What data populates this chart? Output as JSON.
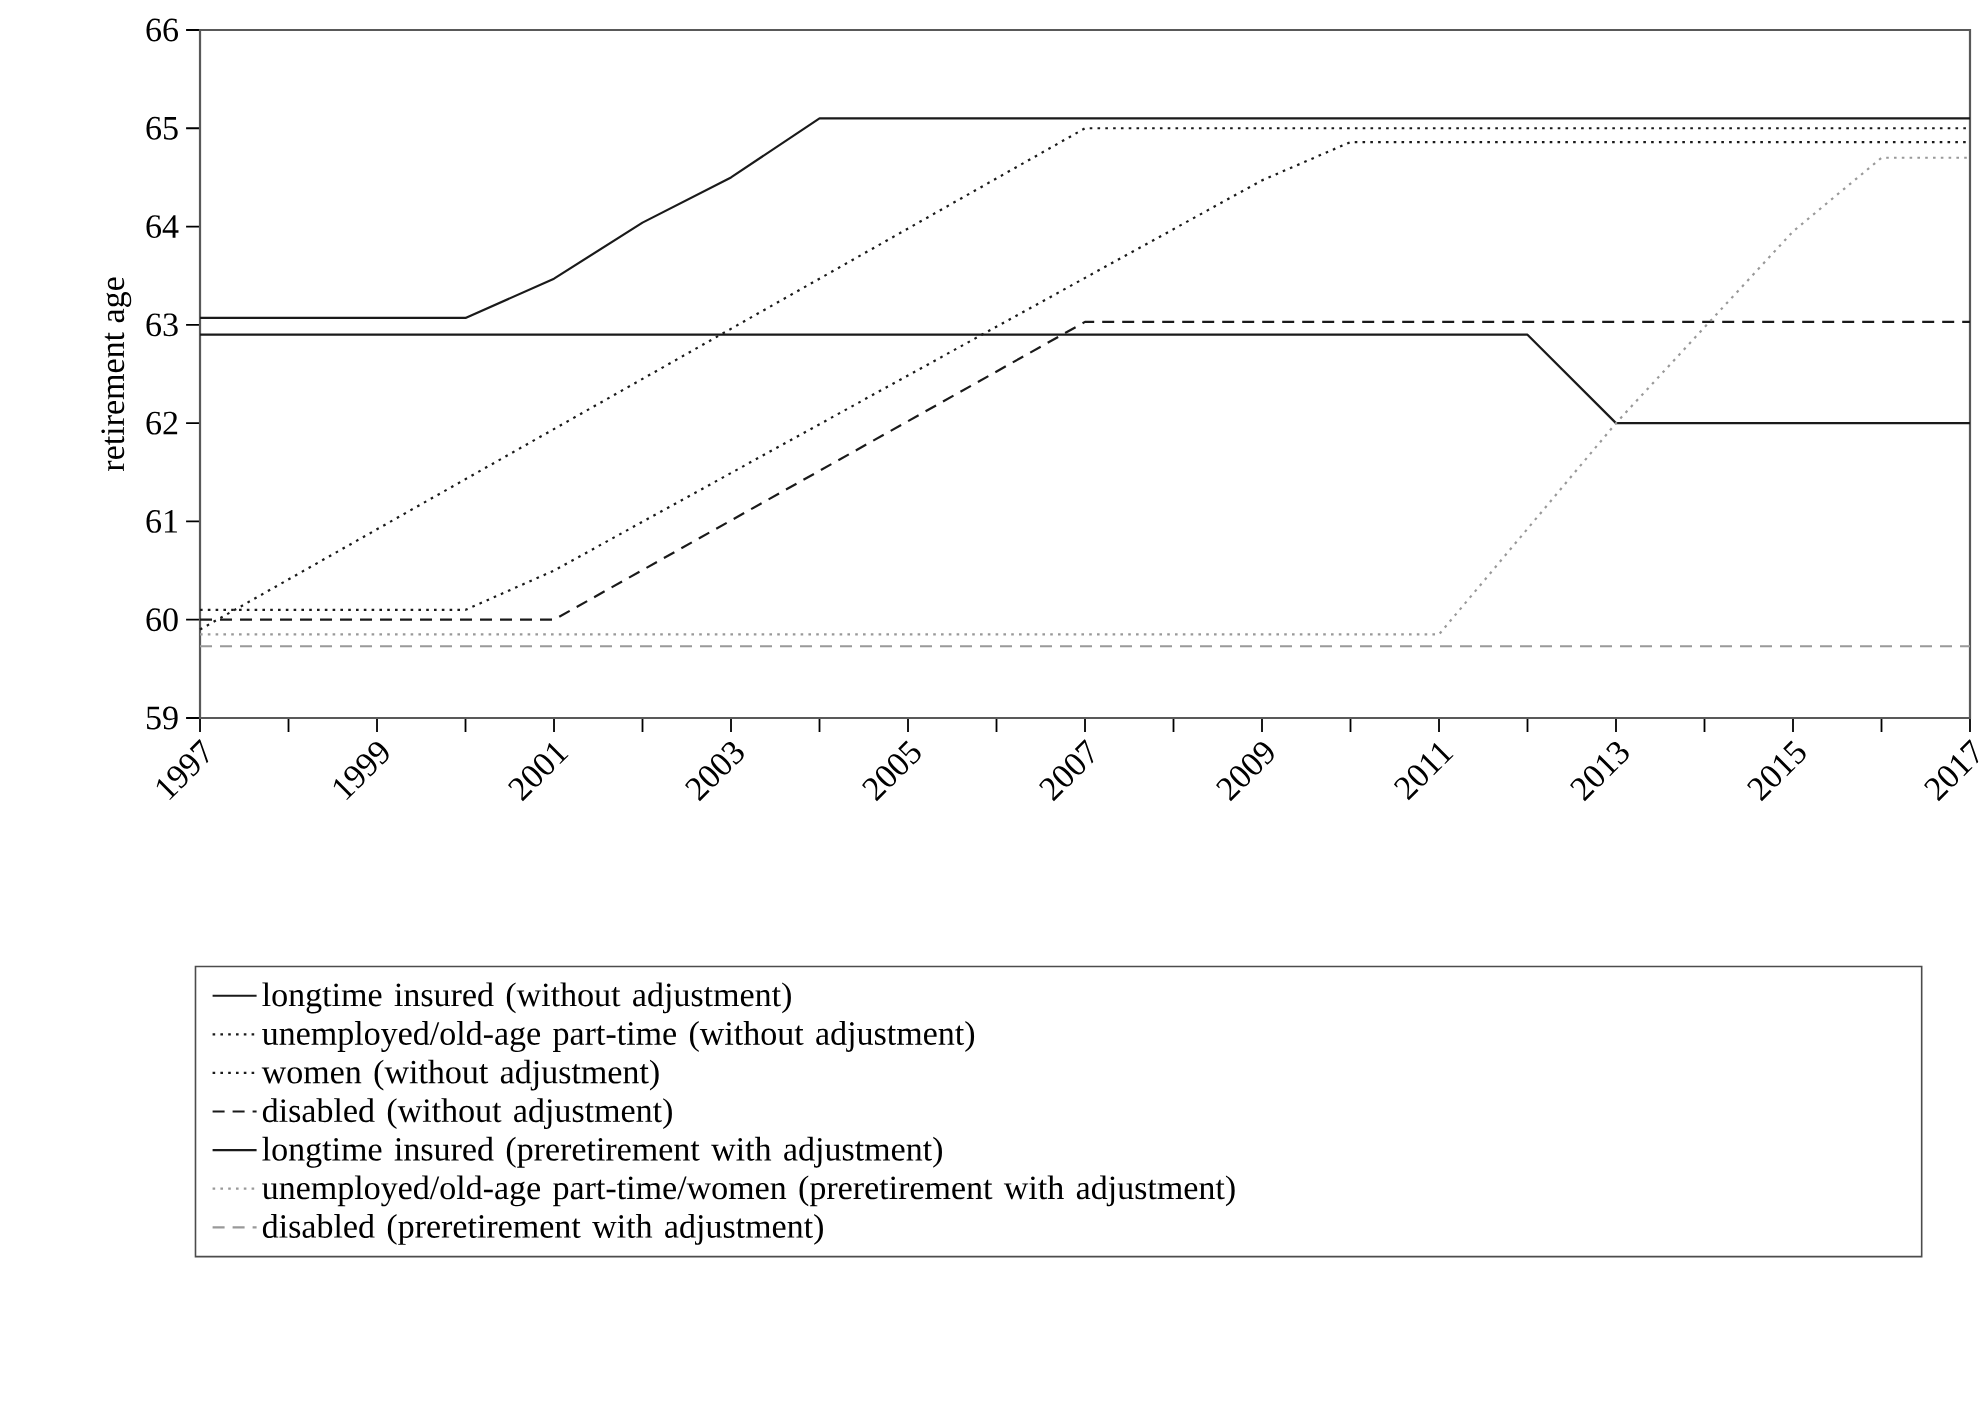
{
  "chart_data": {
    "type": "line",
    "ylabel": "retirement age",
    "xlim": [
      1997,
      2017
    ],
    "ylim": [
      59,
      66
    ],
    "xticks": [
      1997,
      {
        "value": 1998,
        "label": null
      },
      1999,
      {
        "value": 2000,
        "label": null
      },
      2001,
      {
        "value": 2002,
        "label": null
      },
      2003,
      {
        "value": 2004,
        "label": null
      },
      2005,
      {
        "value": 2006,
        "label": null
      },
      2007,
      {
        "value": 2008,
        "label": null
      },
      2009,
      {
        "value": 2010,
        "label": null
      },
      2011,
      {
        "value": 2012,
        "label": null
      },
      2013,
      {
        "value": 2014,
        "label": null
      },
      2015,
      {
        "value": 2016,
        "label": null
      },
      2017
    ],
    "yticks": [
      59,
      60,
      61,
      62,
      63,
      64,
      65,
      66
    ],
    "legend": "bottom",
    "series": [
      {
        "name": "longtime insured (without adjustment)",
        "color": "#1a1a1a",
        "line_style": "solid",
        "x": [
          1997,
          2000,
          2001,
          2002,
          2003,
          2004,
          2017
        ],
        "values": [
          63.07,
          63.07,
          63.47,
          64.04,
          64.5,
          65.1,
          65.1
        ]
      },
      {
        "name": "unemployed/old-age part-time (without adjustment)",
        "color": "#1a1a1a",
        "line_style": "dotted",
        "x": [
          1997,
          2007,
          2017
        ],
        "values": [
          59.9,
          65.0,
          65.0
        ]
      },
      {
        "name": "women (without adjustment)",
        "color": "#1a1a1a",
        "line_style": "dotted",
        "x": [
          1997,
          2000,
          2001,
          2009,
          2010,
          2017
        ],
        "values": [
          60.1,
          60.1,
          60.5,
          64.47,
          64.86,
          64.86
        ]
      },
      {
        "name": "disabled (without adjustment)",
        "color": "#1a1a1a",
        "line_style": "dashed",
        "x": [
          1997,
          2001,
          2007,
          2017
        ],
        "values": [
          60.0,
          60.0,
          63.03,
          63.03
        ]
      },
      {
        "name": "longtime insured (preretirement with adjustment)",
        "color": "#1a1a1a",
        "line_style": "solid",
        "x": [
          1997,
          2012,
          2013,
          2017
        ],
        "values": [
          62.9,
          62.9,
          62.0,
          62.0
        ]
      },
      {
        "name": "unemployed/old-age part-time/women (preretirement with adjustment)",
        "color": "#999999",
        "line_style": "dotted",
        "x": [
          1997,
          2011,
          2013,
          2015,
          2016,
          2017
        ],
        "values": [
          59.85,
          59.85,
          62.0,
          63.95,
          64.7,
          64.7
        ]
      },
      {
        "name": "disabled (preretirement with adjustment)",
        "color": "#999999",
        "line_style": "dashed",
        "x": [
          1997,
          2017
        ],
        "values": [
          59.73,
          59.73
        ]
      }
    ]
  }
}
